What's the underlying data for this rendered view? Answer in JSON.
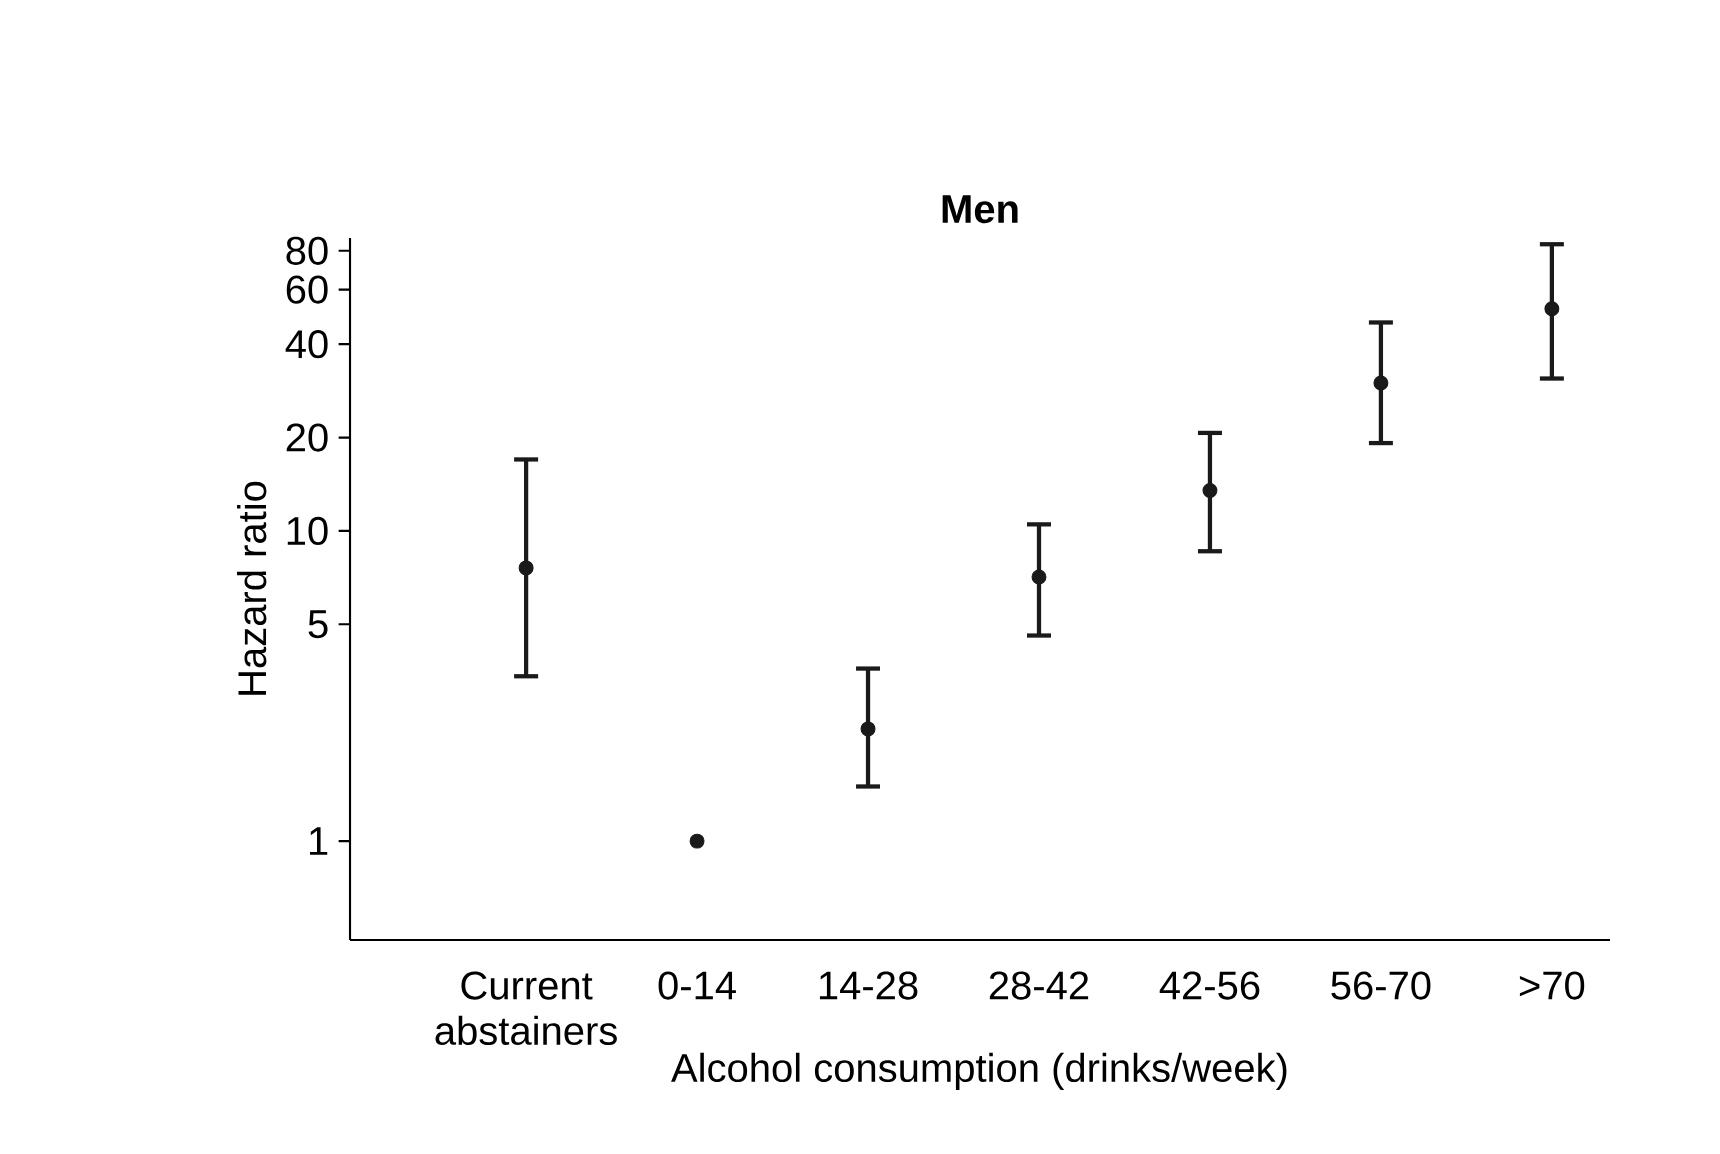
{
  "chart_data": {
    "type": "scatter",
    "title": "Men",
    "xlabel": "Alcohol consumption (drinks/week)",
    "ylabel": "Hazard ratio",
    "categories": [
      "Current abstainers",
      "0-14",
      "14-28",
      "28-42",
      "42-56",
      "56-70",
      ">70"
    ],
    "series": [
      {
        "color": "#1a1a1a",
        "values": [
          7.6,
          1,
          2.3,
          7.1,
          13.5,
          30,
          52
        ],
        "errors": [
          [
            3.4,
            17
          ],
          null,
          [
            1.5,
            3.6
          ],
          [
            4.6,
            10.5
          ],
          [
            8.6,
            20.7
          ],
          [
            19.2,
            47
          ],
          [
            31,
            84
          ]
        ]
      }
    ],
    "log": "y",
    "ylim": [
      0.48,
      88
    ],
    "yticks": [
      1,
      5,
      10,
      20,
      40,
      60,
      80
    ],
    "marker": "circle",
    "grid": false
  }
}
